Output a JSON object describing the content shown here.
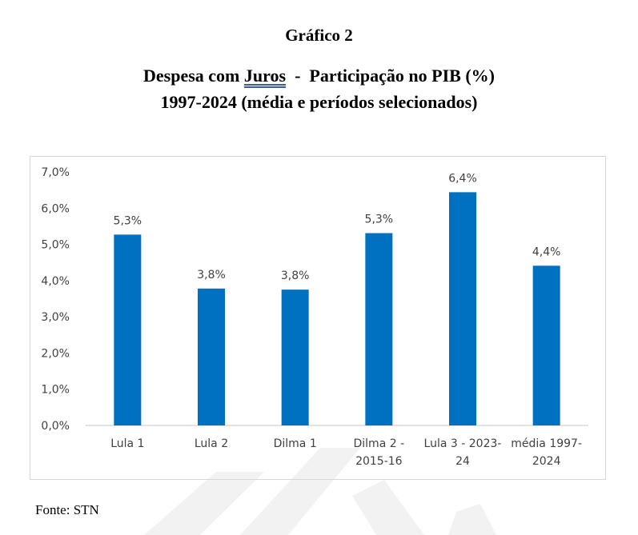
{
  "header": {
    "graph_number": "Gráfico 2",
    "title_pre": "Despesa com ",
    "title_keyword": "Juros",
    "title_post": "  -  Participação no PIB (%)",
    "subtitle": "1997-2024 (média e períodos selecionados)"
  },
  "footer": {
    "source": "Fonte: STN"
  },
  "chart_data": {
    "type": "bar",
    "title": "Despesa com Juros - Participação no PIB (%)",
    "subtitle": "1997-2024 (média e períodos selecionados)",
    "categories": [
      [
        "Lula 1"
      ],
      [
        "Lula 2"
      ],
      [
        "Dilma 1"
      ],
      [
        "Dilma 2 -",
        "2015-16"
      ],
      [
        "Lula 3 - 2023-",
        "24"
      ],
      [
        "média 1997-",
        "2024"
      ]
    ],
    "values": [
      5.27,
      3.78,
      3.75,
      5.31,
      6.44,
      4.41
    ],
    "data_labels": [
      "5,3%",
      "3,8%",
      "3,8%",
      "5,3%",
      "6,4%",
      "4,4%"
    ],
    "y_ticks": [
      "0,0%",
      "1,0%",
      "2,0%",
      "3,0%",
      "4,0%",
      "5,0%",
      "6,0%",
      "7,0%"
    ],
    "ylim": [
      0,
      7
    ],
    "grid": false,
    "bar_color": "#0070c0",
    "axis_color": "#d9d9d9",
    "text_color": "#404040"
  }
}
